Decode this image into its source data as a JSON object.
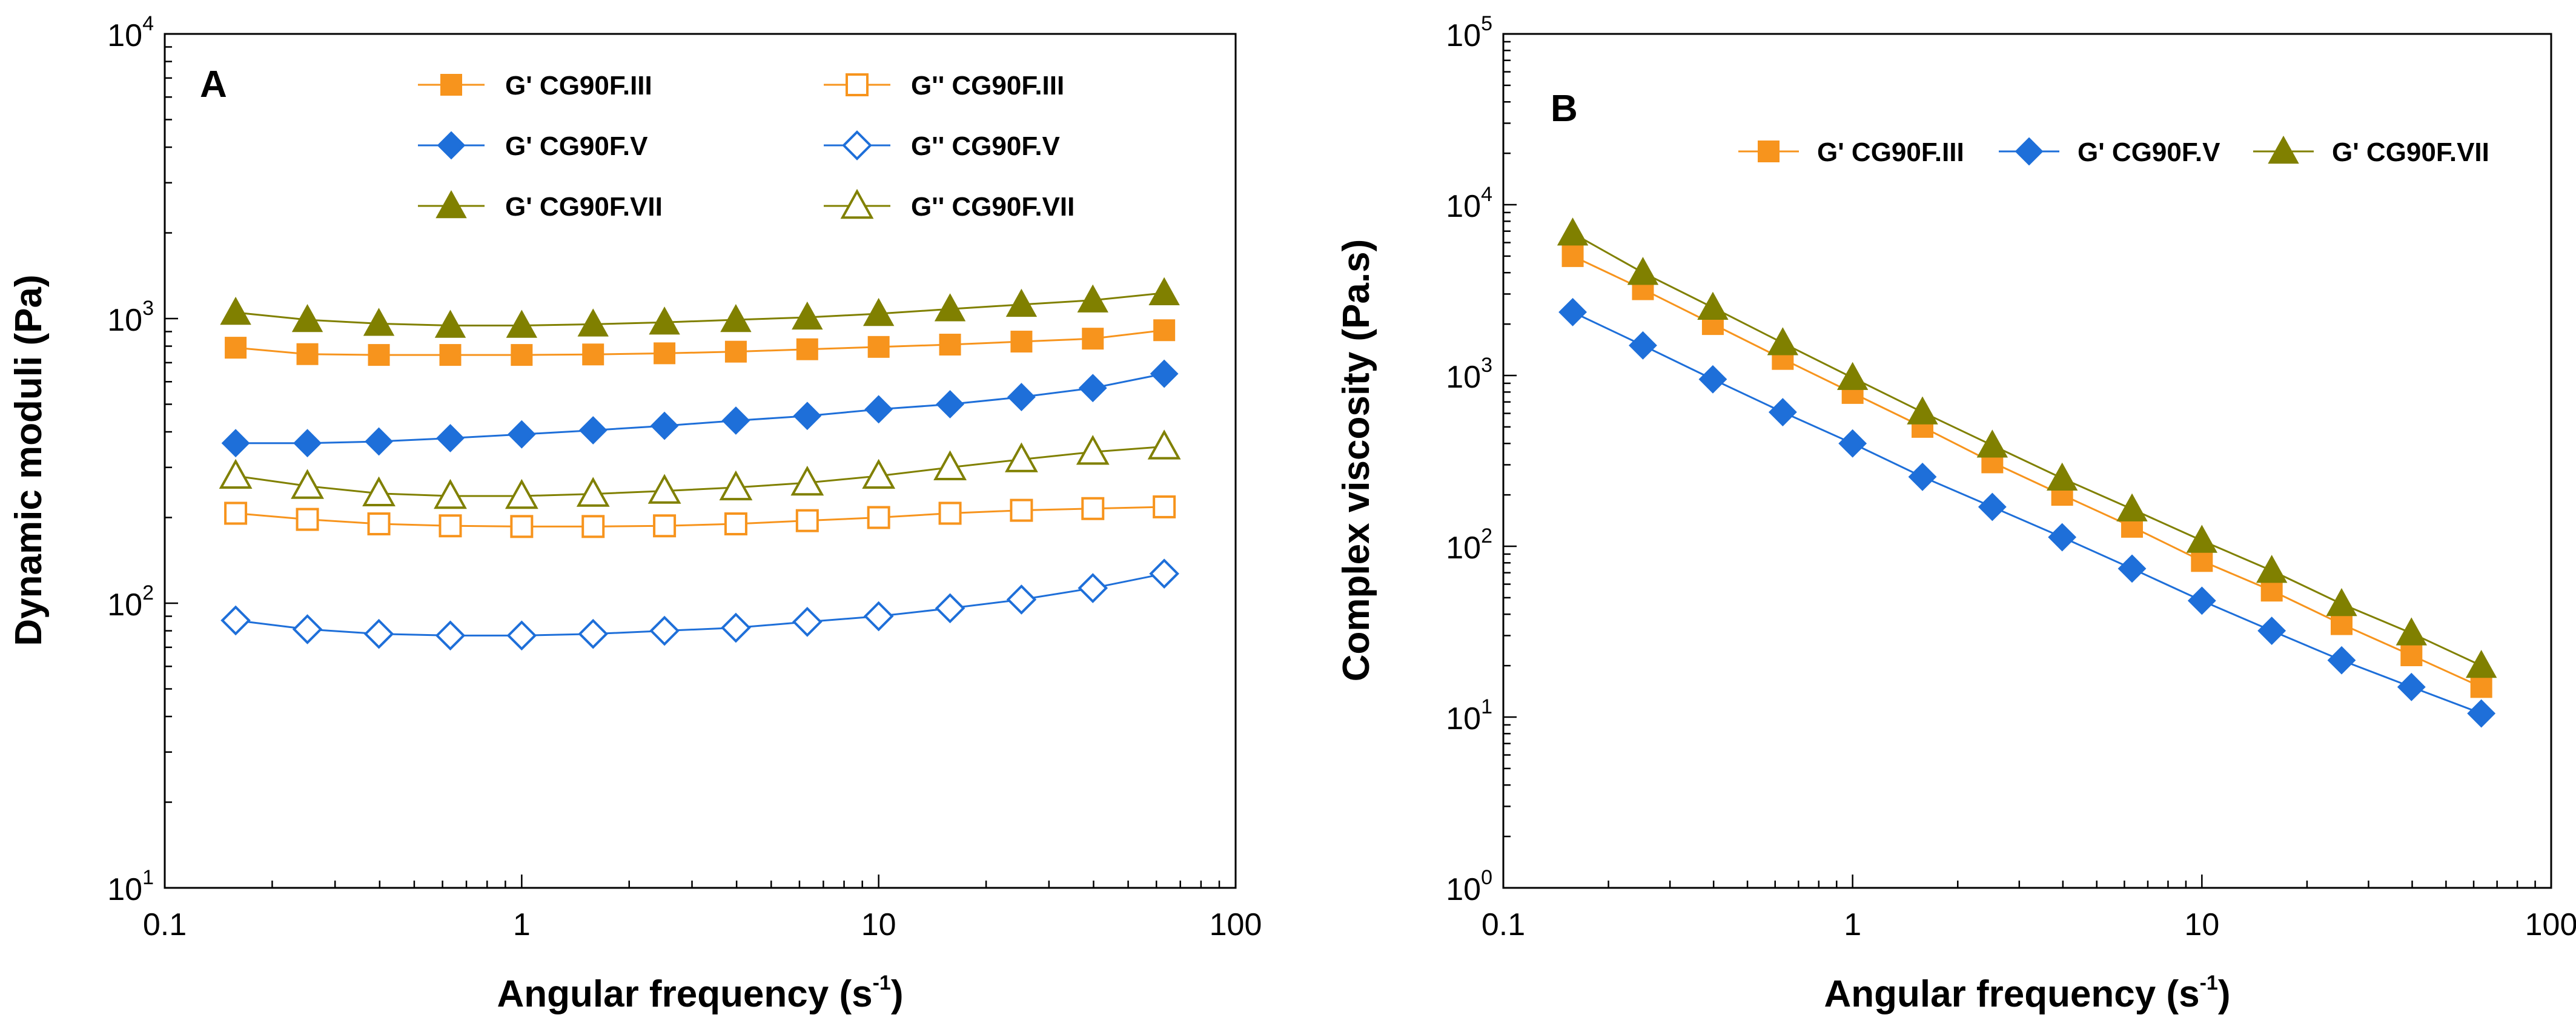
{
  "chart_data": [
    {
      "panel_label": "A",
      "type": "line",
      "x_scale": "log",
      "y_scale": "log",
      "xlim": [
        0.1,
        100
      ],
      "ylim": [
        10,
        10000
      ],
      "x_ticks": [
        "0.1",
        "1",
        "10",
        "100"
      ],
      "y_ticks": [
        {
          "base": "10",
          "exp": "1"
        },
        {
          "base": "10",
          "exp": "2"
        },
        {
          "base": "10",
          "exp": "3"
        },
        {
          "base": "10",
          "exp": "4"
        }
      ],
      "xlabel": {
        "main": "Angular frequency (s",
        "exp": "-1",
        "close": ")"
      },
      "ylabel": "Dynamic moduli (Pa)",
      "grid": false,
      "legend_position": "top",
      "x": [
        0.158,
        0.251,
        0.398,
        0.631,
        1.0,
        1.585,
        2.512,
        3.981,
        6.31,
        10.0,
        15.85,
        25.12,
        39.81,
        63.1
      ],
      "series": [
        {
          "name": "G' CG90F.III",
          "color": "#f7941d",
          "marker": "square",
          "filled": true,
          "values": [
            790,
            750,
            745,
            745,
            745,
            748,
            755,
            765,
            780,
            795,
            810,
            830,
            850,
            910
          ]
        },
        {
          "name": "G'' CG90F.III",
          "color": "#f7941d",
          "marker": "square",
          "filled": false,
          "values": [
            207,
            197,
            190,
            187,
            186,
            186,
            187,
            190,
            195,
            200,
            207,
            212,
            215,
            218
          ]
        },
        {
          "name": "G' CG90F.V",
          "color": "#1e6fd9",
          "marker": "diamond",
          "filled": true,
          "values": [
            365,
            365,
            370,
            380,
            392,
            405,
            420,
            438,
            455,
            480,
            500,
            530,
            570,
            640
          ]
        },
        {
          "name": "G'' CG90F.V",
          "color": "#1e6fd9",
          "marker": "diamond",
          "filled": false,
          "values": [
            87,
            81,
            78,
            77,
            77,
            78,
            80,
            82,
            86,
            90,
            96,
            103,
            113,
            127
          ]
        },
        {
          "name": "G' CG90F.VII",
          "color": "#808000",
          "marker": "triangle",
          "filled": true,
          "values": [
            1050,
            990,
            960,
            945,
            945,
            955,
            970,
            990,
            1010,
            1040,
            1080,
            1120,
            1160,
            1230
          ]
        },
        {
          "name": "G'' CG90F.VII",
          "color": "#808000",
          "marker": "triangle",
          "filled": false,
          "values": [
            280,
            258,
            243,
            238,
            238,
            242,
            248,
            255,
            265,
            280,
            300,
            320,
            340,
            355
          ]
        }
      ]
    },
    {
      "panel_label": "B",
      "type": "line",
      "x_scale": "log",
      "y_scale": "log",
      "xlim": [
        0.1,
        100
      ],
      "ylim": [
        1,
        100000
      ],
      "x_ticks": [
        "0.1",
        "1",
        "10",
        "100"
      ],
      "y_ticks": [
        {
          "base": "10",
          "exp": "0"
        },
        {
          "base": "10",
          "exp": "1"
        },
        {
          "base": "10",
          "exp": "2"
        },
        {
          "base": "10",
          "exp": "3"
        },
        {
          "base": "10",
          "exp": "4"
        },
        {
          "base": "10",
          "exp": "5"
        }
      ],
      "xlabel": {
        "main": "Angular frequency (s",
        "exp": "-1",
        "close": ")"
      },
      "ylabel": "Complex viscosity (Pa.s)",
      "grid": false,
      "legend_position": "top",
      "x": [
        0.158,
        0.251,
        0.398,
        0.631,
        1.0,
        1.585,
        2.512,
        3.981,
        6.31,
        10.0,
        15.85,
        25.12,
        39.81,
        63.1
      ],
      "series": [
        {
          "name": "G' CG90F.III",
          "color": "#f7941d",
          "marker": "square",
          "filled": true,
          "values": [
            5000,
            3200,
            2000,
            1250,
            790,
            500,
            310,
            200,
            130,
            82,
            55,
            35,
            23,
            15
          ]
        },
        {
          "name": "G' CG90F.V",
          "color": "#1e6fd9",
          "marker": "diamond",
          "filled": true,
          "values": [
            2350,
            1500,
            950,
            610,
            400,
            255,
            170,
            113,
            74,
            48,
            32,
            21.5,
            15,
            10.5
          ]
        },
        {
          "name": "G' CG90F.VII",
          "color": "#808000",
          "marker": "triangle",
          "filled": true,
          "values": [
            6800,
            4000,
            2500,
            1550,
            970,
            610,
            390,
            250,
            165,
            108,
            72,
            46,
            31,
            20
          ]
        }
      ]
    }
  ]
}
